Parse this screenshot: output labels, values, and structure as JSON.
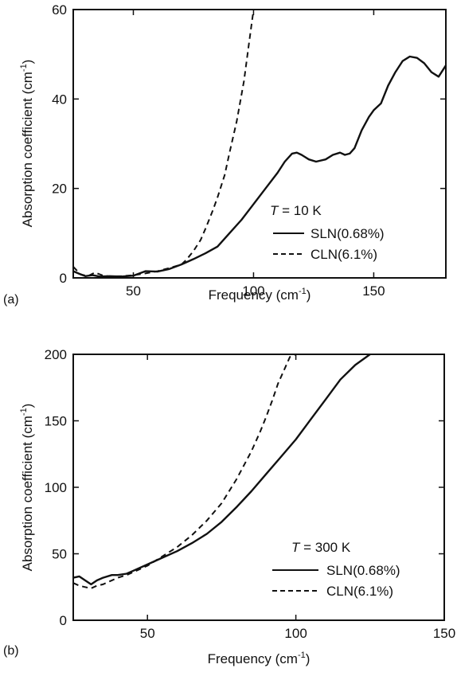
{
  "chart_data": [
    {
      "panel_label": "(a)",
      "type": "line",
      "xlabel": "Frequency (cm",
      "xlabel_sup": "-1",
      "xlabel_close": ")",
      "ylabel": "Absorption coefficient (cm",
      "ylabel_sup": "-1",
      "ylabel_close": ")",
      "xlim": [
        25,
        180
      ],
      "ylim": [
        0,
        60
      ],
      "xticks": [
        50,
        100,
        150
      ],
      "yticks": [
        0,
        20,
        40,
        60
      ],
      "legend": {
        "position": "lower-right",
        "title_var": "T",
        "title_rest": " = 10 K"
      },
      "grid": false,
      "series": [
        {
          "name": "SLN(0.68%)",
          "style": "solid",
          "x": [
            25,
            28,
            30,
            33,
            36,
            40,
            45,
            50,
            55,
            60,
            65,
            70,
            75,
            80,
            85,
            90,
            95,
            100,
            105,
            110,
            113,
            116,
            118,
            120,
            123,
            126,
            130,
            133,
            136,
            138,
            140,
            142,
            145,
            148,
            150,
            153,
            156,
            159,
            162,
            165,
            168,
            171,
            174,
            177,
            180
          ],
          "y": [
            1.5,
            0.8,
            0.4,
            0.6,
            0.3,
            0.4,
            0.3,
            0.5,
            1.5,
            1.4,
            2.0,
            3.0,
            4.2,
            5.5,
            7.0,
            10.0,
            13.0,
            16.5,
            20.0,
            23.5,
            26.0,
            27.8,
            28.0,
            27.5,
            26.5,
            26.0,
            26.5,
            27.5,
            28.0,
            27.5,
            27.8,
            29.0,
            33.0,
            36.0,
            37.5,
            39.0,
            43.0,
            46.0,
            48.5,
            49.5,
            49.2,
            48.0,
            46.0,
            45.0,
            47.5
          ]
        },
        {
          "name": "CLN(6.1%)",
          "style": "dashed",
          "x": [
            25,
            28,
            31,
            34,
            37,
            40,
            45,
            50,
            55,
            60,
            65,
            70,
            72,
            75,
            78,
            80,
            83,
            85,
            88,
            90,
            93,
            96,
            98,
            100
          ],
          "y": [
            2.5,
            0.8,
            0.4,
            1.2,
            0.6,
            0.3,
            0.4,
            0.6,
            1.0,
            1.5,
            2.2,
            3.0,
            4.0,
            6.0,
            8.5,
            11.0,
            15.0,
            18.0,
            23.0,
            28.0,
            35.0,
            44.0,
            52.0,
            60.0
          ]
        }
      ]
    },
    {
      "panel_label": "(b)",
      "type": "line",
      "xlabel": "Frequency (cm",
      "xlabel_sup": "-1",
      "xlabel_close": ")",
      "ylabel": "Absorption coefficient (cm",
      "ylabel_sup": "-1",
      "ylabel_close": ")",
      "xlim": [
        25,
        150
      ],
      "ylim": [
        0,
        200
      ],
      "xticks": [
        50,
        100,
        150
      ],
      "yticks": [
        0,
        50,
        100,
        150,
        200
      ],
      "legend": {
        "position": "lower-right",
        "title_var": "T",
        "title_rest": " = 300 K"
      },
      "grid": false,
      "series": [
        {
          "name": "SLN(0.68%)",
          "style": "solid",
          "x": [
            25,
            27,
            29,
            31,
            33,
            35,
            38,
            40,
            43,
            45,
            50,
            55,
            60,
            65,
            70,
            75,
            80,
            85,
            90,
            95,
            100,
            105,
            110,
            115,
            120,
            125
          ],
          "y": [
            32,
            33,
            30,
            27,
            30,
            32,
            34,
            34,
            35,
            37,
            42,
            47,
            52,
            58,
            65,
            74,
            85,
            97,
            110,
            123,
            136,
            151,
            166,
            181,
            192,
            200
          ],
          "name_bound": true
        },
        {
          "name": "CLN(6.1%)",
          "style": "dashed",
          "x": [
            25,
            27,
            29,
            31,
            33,
            35,
            38,
            40,
            43,
            45,
            50,
            55,
            60,
            65,
            70,
            75,
            80,
            85,
            88,
            90,
            92,
            94,
            96,
            98,
            100
          ],
          "y": [
            28,
            26,
            25,
            24,
            26,
            27,
            30,
            32,
            34,
            36,
            41,
            48,
            55,
            64,
            75,
            88,
            106,
            127,
            142,
            153,
            165,
            178,
            188,
            198,
            200
          ]
        }
      ]
    }
  ]
}
